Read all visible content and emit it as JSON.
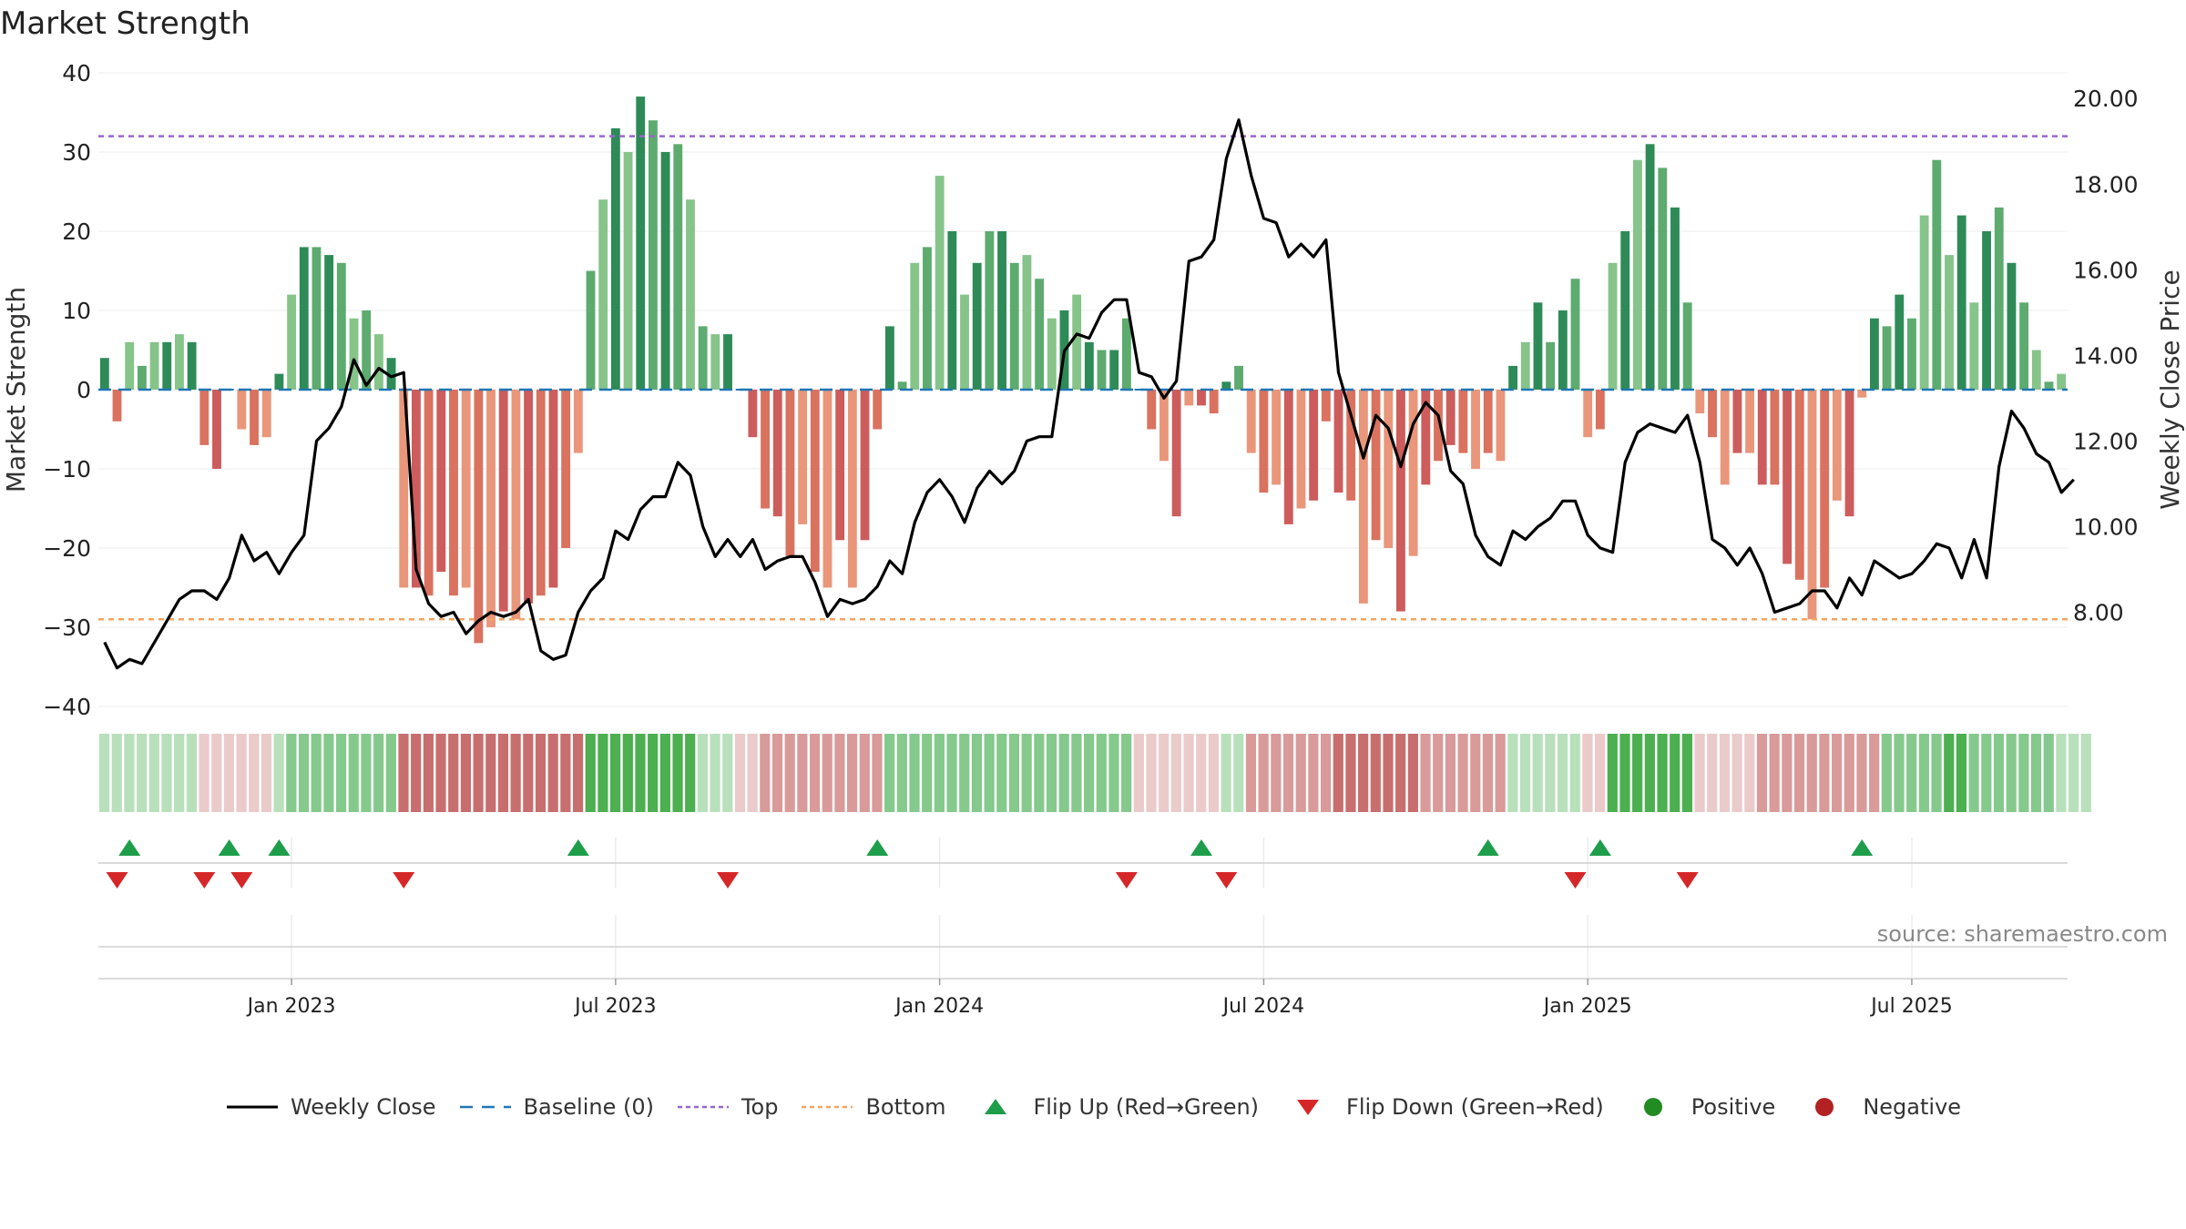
{
  "title": "Market Strength",
  "source": "source: sharemaestro.com",
  "colors": {
    "pos_dark": "#2e8b57",
    "pos_mid": "#5dab6f",
    "pos_light": "#86c48a",
    "neg_dark": "#cd5c5c",
    "neg_mid": "#d9725f",
    "neg_light": "#e9967a",
    "price": "#000000",
    "top": "#9966cc",
    "bottom": "#f4a460",
    "baseline": "#1f77b4",
    "flip_up": "#1e9e4a",
    "flip_down": "#d62728",
    "positive": "#228b22",
    "negative": "#b22222"
  },
  "legend": [
    {
      "label": "Weekly Close",
      "symbol": "line"
    },
    {
      "label": "Baseline (0)",
      "symbol": "baseline"
    },
    {
      "label": "Top",
      "symbol": "top"
    },
    {
      "label": "Bottom",
      "symbol": "bottom"
    },
    {
      "label": "Flip Up (Red→Green)",
      "symbol": "tri-up"
    },
    {
      "label": "Flip Down (Green→Red)",
      "symbol": "tri-down"
    },
    {
      "label": "Positive",
      "symbol": "dot-pos"
    },
    {
      "label": "Negative",
      "symbol": "dot-neg"
    }
  ],
  "chart_data": {
    "type": "bar",
    "title": "Market Strength",
    "ylabel": "Market Strength",
    "y2label": "Weekly Close Price",
    "ylim": [
      -40,
      40
    ],
    "yticks": [
      40,
      30,
      20,
      10,
      0,
      -10,
      -20,
      -30,
      -40
    ],
    "ytick_labels": [
      "40",
      "30",
      "20",
      "10",
      "0",
      "−10",
      "−20",
      "−30",
      "−40"
    ],
    "y2lim": [
      5.8,
      20.6
    ],
    "y2ticks": [
      20,
      18,
      16,
      14,
      12,
      10,
      8
    ],
    "y2tick_labels": [
      "20.00",
      "18.00",
      "16.00",
      "14.00",
      "12.00",
      "10.00",
      "8.00"
    ],
    "top_line": 32,
    "bottom_line": -29,
    "xlabels": [
      "Jan 2023",
      "Jul 2023",
      "Jan 2024",
      "Jul 2024",
      "Jan 2025",
      "Jul 2025"
    ],
    "xlabel_weeks": [
      15.5,
      41.5,
      67.5,
      93.5,
      119.5,
      145.5
    ],
    "strength": [
      4,
      -4,
      6,
      3,
      6,
      6,
      7,
      6,
      -7,
      -10,
      0,
      -5,
      -7,
      -6,
      2,
      12,
      18,
      18,
      17,
      16,
      9,
      10,
      7,
      4,
      -25,
      -25,
      -26,
      -23,
      -26,
      -25,
      -32,
      -30,
      -28,
      -29,
      -27,
      -26,
      -25,
      -20,
      -8,
      15,
      24,
      33,
      30,
      37,
      34,
      30,
      31,
      24,
      8,
      7,
      7,
      0,
      -6,
      -15,
      -16,
      -21,
      -17,
      -23,
      -25,
      -19,
      -25,
      -19,
      -5,
      8,
      1,
      16,
      18,
      27,
      20,
      12,
      16,
      20,
      20,
      16,
      17,
      14,
      9,
      10,
      12,
      6,
      5,
      5,
      9,
      0,
      -5,
      -9,
      -16,
      -2,
      -2,
      -3,
      1,
      3,
      -8,
      -13,
      -12,
      -17,
      -15,
      -14,
      -4,
      -13,
      -14,
      -27,
      -19,
      -20,
      -28,
      -21,
      -12,
      -9,
      -7,
      -8,
      -10,
      -8,
      -9,
      3,
      6,
      11,
      6,
      10,
      14,
      -6,
      -5,
      16,
      20,
      29,
      31,
      28,
      23,
      11,
      -3,
      -6,
      -12,
      -8,
      -8,
      -12,
      -12,
      -22,
      -24,
      -29,
      -25,
      -14,
      -16,
      -1,
      9,
      8,
      12,
      9,
      22,
      29,
      17,
      22,
      11,
      20,
      23,
      16,
      11,
      5,
      1,
      2
    ],
    "price": [
      7.3,
      6.7,
      6.9,
      6.8,
      7.3,
      7.8,
      8.3,
      8.5,
      8.5,
      8.3,
      8.8,
      9.8,
      9.2,
      9.4,
      8.9,
      9.4,
      9.8,
      12.0,
      12.3,
      12.8,
      13.9,
      13.3,
      13.7,
      13.5,
      13.6,
      9.0,
      8.2,
      7.9,
      8.0,
      7.5,
      7.8,
      8.0,
      7.9,
      8.0,
      8.3,
      7.1,
      6.9,
      7.0,
      8.0,
      8.5,
      8.8,
      9.9,
      9.7,
      10.4,
      10.7,
      10.7,
      11.5,
      11.2,
      10.0,
      9.3,
      9.7,
      9.3,
      9.7,
      9.0,
      9.2,
      9.3,
      9.3,
      8.7,
      7.9,
      8.3,
      8.2,
      8.3,
      8.6,
      9.2,
      8.9,
      10.1,
      10.8,
      11.1,
      10.7,
      10.1,
      10.9,
      11.3,
      11.0,
      11.3,
      12.0,
      12.1,
      12.1,
      14.1,
      14.5,
      14.4,
      15.0,
      15.3,
      15.3,
      13.6,
      13.5,
      13.0,
      13.4,
      16.2,
      16.3,
      16.7,
      18.6,
      19.5,
      18.2,
      17.2,
      17.1,
      16.3,
      16.6,
      16.3,
      16.7,
      13.6,
      12.6,
      11.6,
      12.6,
      12.3,
      11.4,
      12.4,
      12.9,
      12.6,
      11.3,
      11.0,
      9.8,
      9.3,
      9.1,
      9.9,
      9.7,
      10.0,
      10.2,
      10.6,
      10.6,
      9.8,
      9.5,
      9.4,
      11.5,
      12.2,
      12.4,
      12.3,
      12.2,
      12.6,
      11.5,
      9.7,
      9.5,
      9.1,
      9.5,
      8.9,
      8.0,
      8.1,
      8.2,
      8.5,
      8.5,
      8.1,
      8.8,
      8.4,
      9.2,
      9.0,
      8.8,
      8.9,
      9.2,
      9.6,
      9.5,
      8.8,
      9.7,
      8.8,
      11.4,
      12.7,
      12.3,
      11.7,
      11.5,
      10.8,
      11.1
    ],
    "heat_levels": [
      1,
      1,
      1,
      1,
      1,
      1,
      1,
      1,
      -1,
      -1,
      -1,
      -1,
      -1,
      -1,
      1,
      2,
      2,
      2,
      2,
      2,
      2,
      2,
      2,
      2,
      -3,
      -3,
      -3,
      -3,
      -3,
      -3,
      -3,
      -3,
      -3,
      -3,
      -3,
      -3,
      -3,
      -3,
      -3,
      3,
      3,
      3,
      3,
      3,
      3,
      3,
      3,
      3,
      1,
      1,
      1,
      -1,
      -1,
      -2,
      -2,
      -2,
      -2,
      -2,
      -2,
      -2,
      -2,
      -2,
      -2,
      2,
      2,
      2,
      2,
      2,
      2,
      2,
      2,
      2,
      2,
      2,
      2,
      2,
      2,
      2,
      2,
      2,
      2,
      2,
      2,
      -1,
      -1,
      -1,
      -1,
      -1,
      -1,
      -1,
      1,
      1,
      -2,
      -2,
      -2,
      -2,
      -2,
      -2,
      -2,
      -3,
      -3,
      -3,
      -3,
      -3,
      -3,
      -3,
      -2,
      -2,
      -2,
      -2,
      -2,
      -2,
      -2,
      1,
      1,
      1,
      1,
      1,
      1,
      -1,
      -1,
      3,
      3,
      3,
      3,
      3,
      3,
      3,
      -1,
      -1,
      -1,
      -1,
      -1,
      -2,
      -2,
      -2,
      -2,
      -2,
      -2,
      -2,
      -2,
      -2,
      -2,
      2,
      2,
      2,
      2,
      2,
      3,
      3,
      2,
      2,
      2,
      2,
      2,
      2,
      2,
      1,
      1,
      1
    ],
    "flip_up_weeks": [
      2,
      10,
      14,
      38,
      62,
      88,
      111,
      120,
      141
    ],
    "flip_down_weeks": [
      1,
      8,
      11,
      24,
      50,
      82,
      90,
      118,
      127
    ]
  }
}
